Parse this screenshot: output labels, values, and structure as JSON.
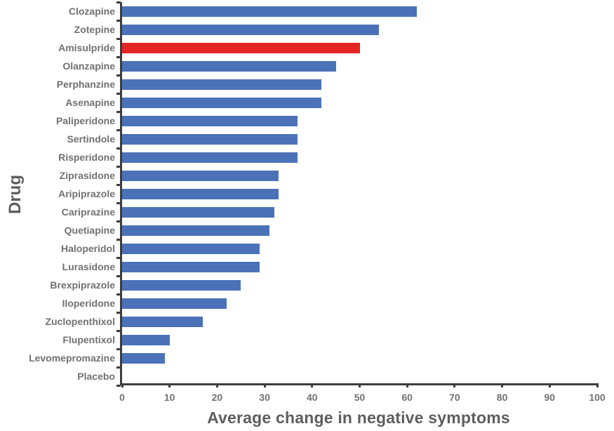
{
  "chart_data": {
    "type": "bar",
    "orientation": "horizontal",
    "xlabel": "Average change in negative symptoms",
    "ylabel": "Drug",
    "xlim": [
      0,
      100
    ],
    "xticks": [
      0,
      10,
      20,
      30,
      40,
      50,
      60,
      70,
      80,
      90,
      100
    ],
    "grid": false,
    "legend": null,
    "categories": [
      "Clozapine",
      "Zotepine",
      "Amisulpride",
      "Olanzapine",
      "Perphanzine",
      "Asenapine",
      "Paliperidone",
      "Sertindole",
      "Risperidone",
      "Ziprasidone",
      "Aripiprazole",
      "Cariprazine",
      "Quetiapine",
      "Haloperidol",
      "Lurasidone",
      "Brexpiprazole",
      "Iloperidone",
      "Zuclopenthixol",
      "Flupentixol",
      "Levomepromazine",
      "Placebo"
    ],
    "values": [
      62,
      54,
      50,
      45,
      42,
      42,
      37,
      37,
      37,
      33,
      33,
      32,
      31,
      29,
      29,
      25,
      22,
      17,
      10,
      9,
      0
    ],
    "highlight_category": "Amisulpride",
    "colors": {
      "bar": "#4b72b8",
      "highlight": "#e52523",
      "axis": "#3d3d3d",
      "label_text": "#717171",
      "title_text": "#5e5e5e"
    }
  }
}
